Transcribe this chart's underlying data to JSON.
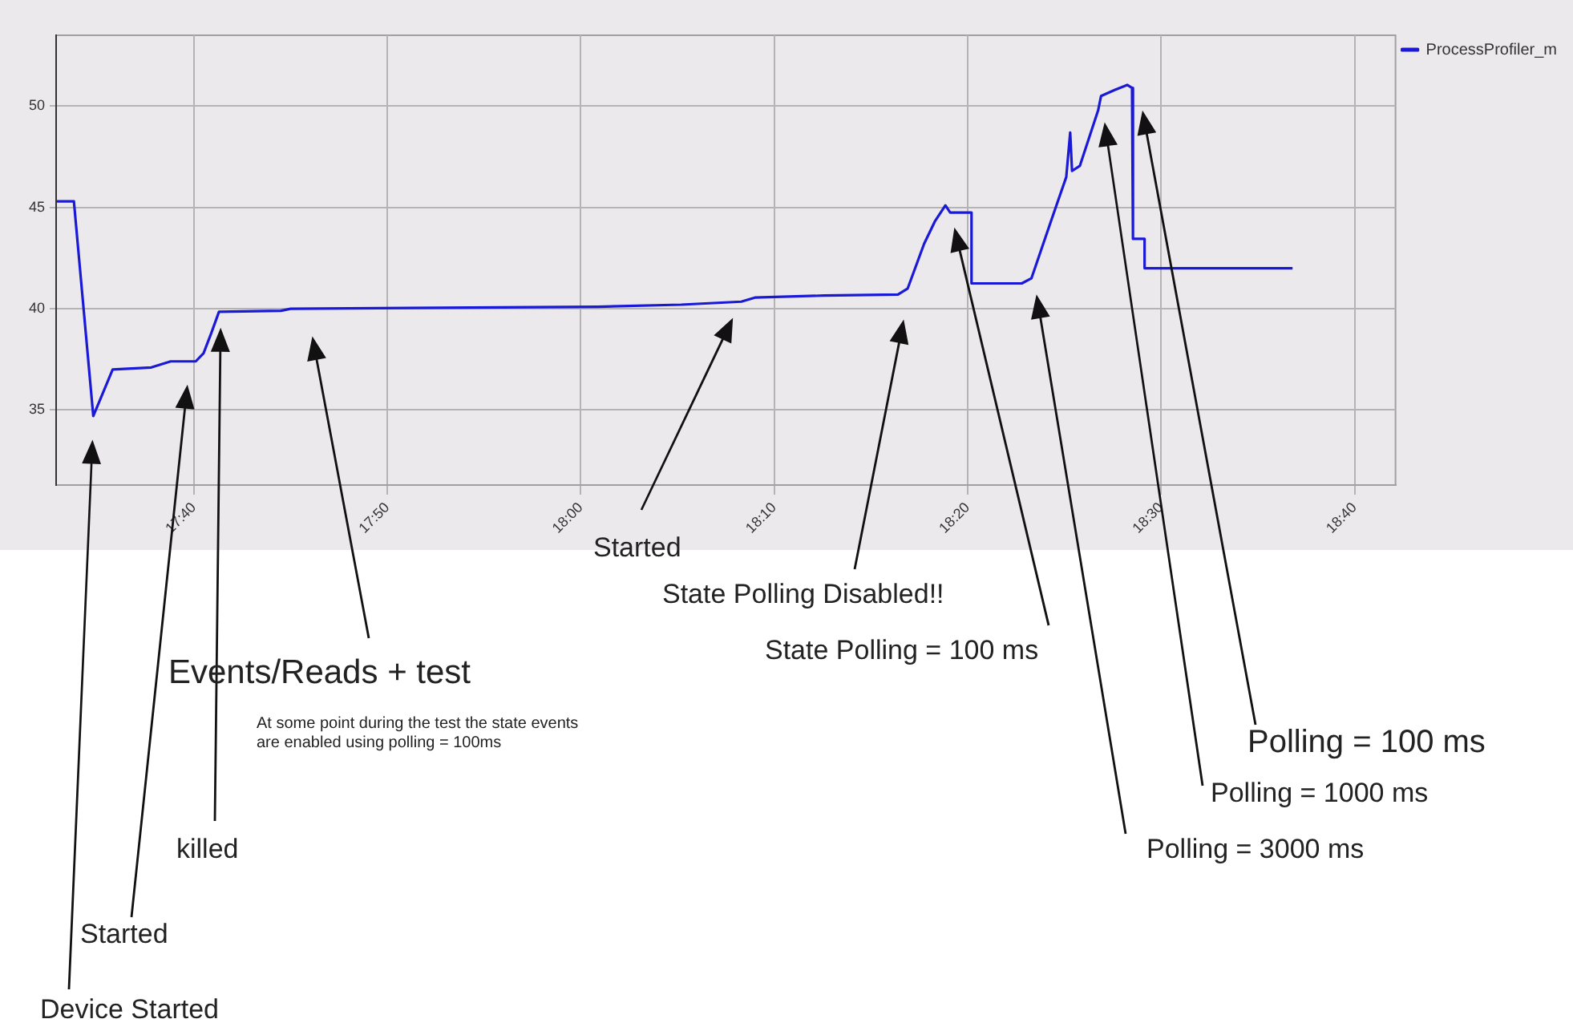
{
  "chart_data": {
    "type": "line",
    "x": [
      17.5487,
      17.5633,
      17.58,
      17.5967,
      17.63,
      17.6467,
      17.6683,
      17.675,
      17.6817,
      17.6883,
      17.7417,
      17.75,
      18.015,
      18.0867,
      18.1383,
      18.15,
      18.21,
      18.2733,
      18.2817,
      18.2958,
      18.305,
      18.3142,
      18.3183,
      18.3367,
      18.3367,
      18.38,
      18.3883,
      18.405,
      18.4183,
      18.4217,
      18.4233,
      18.43,
      18.4458,
      18.4483,
      18.46,
      18.4708,
      18.475,
      18.4758,
      18.4858,
      18.4858,
      18.6133
    ],
    "series": [
      {
        "name": "ProcessProfiler_m",
        "color": "#1a1ad6",
        "values": [
          45.3,
          45.3,
          34.7,
          37.0,
          37.1,
          37.4,
          37.4,
          37.8,
          38.8,
          39.85,
          39.9,
          40.0,
          40.1,
          40.2,
          40.35,
          40.55,
          40.65,
          40.7,
          41.0,
          43.2,
          44.3,
          45.1,
          44.75,
          44.75,
          41.25,
          41.25,
          41.5,
          44.3,
          46.5,
          48.7,
          46.8,
          47.05,
          49.8,
          50.5,
          50.8,
          51.05,
          50.9,
          43.45,
          43.45,
          42.0,
          42.0
        ]
      }
    ],
    "xlim": [
      17.548,
      18.702
    ],
    "ylim": [
      31.3,
      53.5
    ],
    "xticks": [
      {
        "value": 17.6667,
        "label": "17:40"
      },
      {
        "value": 17.8333,
        "label": "17:50"
      },
      {
        "value": 18.0,
        "label": "18:00"
      },
      {
        "value": 18.1667,
        "label": "18:10"
      },
      {
        "value": 18.3333,
        "label": "18:20"
      },
      {
        "value": 18.5,
        "label": "18:30"
      },
      {
        "value": 18.6667,
        "label": "18:40"
      }
    ],
    "yticks": [
      35,
      40,
      45,
      50
    ],
    "grid": true,
    "legend": "top right",
    "marker": "none",
    "line_style": "solid",
    "annotations": [
      "Device Started",
      "Started",
      "killed",
      "Events/Reads + test",
      "At some point during the test the state events\nare enabled using polling = 100ms",
      "Started",
      "State Polling Disabled!!",
      "State Polling = 100 ms",
      "Polling = 3000 ms",
      "Polling = 1000 ms",
      "Polling = 100 ms"
    ]
  }
}
